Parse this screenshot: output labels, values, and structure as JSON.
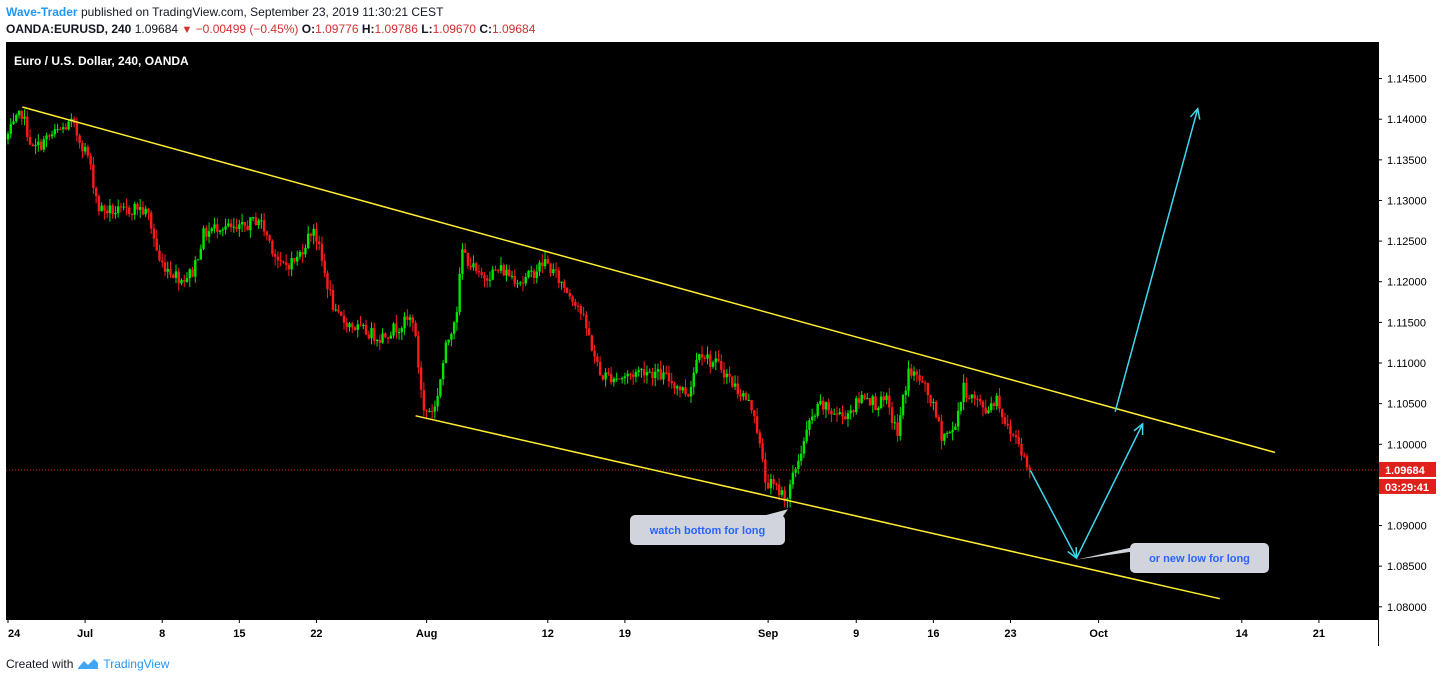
{
  "header": {
    "author": "Wave-Trader",
    "published": "published on TradingView.com, September 23, 2019 11:30:21 CEST",
    "symbol": "OANDA:EURUSD, 240",
    "last": "1.09684",
    "change": "−0.00499 (−0.45%)",
    "open_label": "O:",
    "open": "1.09776",
    "high_label": "H:",
    "high": "1.09786",
    "low_label": "L:",
    "low": "1.09670",
    "close_label": "C:",
    "close": "1.09684"
  },
  "footer": {
    "created": "Created with",
    "brand": "TradingView"
  },
  "colors": {
    "background": "#000000",
    "up": "#00e600",
    "down": "#ff1a1a",
    "channel": "#ffee33",
    "projection": "#3fd7f0",
    "price_tag": "#e0201b",
    "axis_text": "#000000"
  },
  "chart_data": {
    "type": "candlestick",
    "title": "Euro / U.S. Dollar, 240, OANDA",
    "ylim": [
      1.0785,
      1.1495
    ],
    "y_ticks": [
      "1.08000",
      "1.08500",
      "1.09000",
      "1.09500",
      "1.10000",
      "1.10500",
      "1.11000",
      "1.11500",
      "1.12000",
      "1.12500",
      "1.13000",
      "1.13500",
      "1.14000",
      "1.14500"
    ],
    "x_ticks": [
      {
        "label": "24",
        "day": 0
      },
      {
        "label": "Jul",
        "day": 7
      },
      {
        "label": "8",
        "day": 14
      },
      {
        "label": "15",
        "day": 21
      },
      {
        "label": "22",
        "day": 28
      },
      {
        "label": "Aug",
        "day": 38
      },
      {
        "label": "12",
        "day": 49
      },
      {
        "label": "19",
        "day": 56
      },
      {
        "label": "Sep",
        "day": 69
      },
      {
        "label": "9",
        "day": 77
      },
      {
        "label": "16",
        "day": 84
      },
      {
        "label": "23",
        "day": 91
      },
      {
        "label": "Oct",
        "day": 99
      },
      {
        "label": "14",
        "day": 112
      },
      {
        "label": "21",
        "day": 119
      }
    ],
    "x_range_days": [
      0,
      124
    ],
    "price_anchors": [
      [
        0,
        1.1375
      ],
      [
        1.5,
        1.1408
      ],
      [
        2.5,
        1.1362
      ],
      [
        4,
        1.1378
      ],
      [
        6,
        1.1395
      ],
      [
        7.5,
        1.1355
      ],
      [
        8.5,
        1.129
      ],
      [
        10.5,
        1.1285
      ],
      [
        12,
        1.1292
      ],
      [
        13,
        1.1282
      ],
      [
        14,
        1.1225
      ],
      [
        16,
        1.1203
      ],
      [
        17,
        1.1212
      ],
      [
        18,
        1.1258
      ],
      [
        19.5,
        1.127
      ],
      [
        21,
        1.1262
      ],
      [
        23,
        1.1278
      ],
      [
        24,
        1.125
      ],
      [
        25,
        1.1218
      ],
      [
        26.5,
        1.1228
      ],
      [
        28,
        1.1268
      ],
      [
        29,
        1.121
      ],
      [
        30,
        1.1158
      ],
      [
        32,
        1.1142
      ],
      [
        34,
        1.1132
      ],
      [
        36,
        1.1148
      ],
      [
        37,
        1.1155
      ],
      [
        38,
        1.104
      ],
      [
        39,
        1.1045
      ],
      [
        40,
        1.1118
      ],
      [
        41,
        1.1168
      ],
      [
        41.5,
        1.1238
      ],
      [
        43,
        1.1205
      ],
      [
        45,
        1.1215
      ],
      [
        47,
        1.12
      ],
      [
        49,
        1.1225
      ],
      [
        50.5,
        1.1198
      ],
      [
        52,
        1.1172
      ],
      [
        53,
        1.1132
      ],
      [
        54,
        1.1085
      ],
      [
        56,
        1.1082
      ],
      [
        58,
        1.1092
      ],
      [
        60,
        1.1082
      ],
      [
        62,
        1.1062
      ],
      [
        63,
        1.1118
      ],
      [
        64,
        1.1102
      ],
      [
        65,
        1.1095
      ],
      [
        66,
        1.1075
      ],
      [
        67,
        1.106
      ],
      [
        68,
        1.104
      ],
      [
        69,
        1.0955
      ],
      [
        71,
        1.0935
      ],
      [
        72,
        1.0982
      ],
      [
        73,
        1.1025
      ],
      [
        74,
        1.1048
      ],
      [
        75,
        1.104
      ],
      [
        76,
        1.1035
      ],
      [
        77,
        1.1045
      ],
      [
        78,
        1.1062
      ],
      [
        79,
        1.105
      ],
      [
        80,
        1.1052
      ],
      [
        81,
        1.1012
      ],
      [
        81.5,
        1.1055
      ],
      [
        82,
        1.109
      ],
      [
        83,
        1.108
      ],
      [
        84,
        1.1055
      ],
      [
        85,
        1.1012
      ],
      [
        86,
        1.1015
      ],
      [
        87,
        1.1068
      ],
      [
        88,
        1.1055
      ],
      [
        89,
        1.1042
      ],
      [
        90,
        1.1058
      ],
      [
        91,
        1.1018
      ],
      [
        92,
        1.1005
      ],
      [
        92.8,
        1.0968
      ]
    ],
    "last_price": "1.09684",
    "countdown": "03:29:41",
    "annotations": [
      {
        "text": "watch bottom for long"
      },
      {
        "text": "or new low for long"
      }
    ],
    "channel_upper": [
      [
        1.3,
        1.1415
      ],
      [
        115,
        1.099
      ]
    ],
    "channel_lower": [
      [
        37,
        1.1035
      ],
      [
        110,
        1.081
      ]
    ],
    "projection": [
      [
        92.8,
        1.0968
      ],
      [
        97,
        1.086
      ],
      [
        103,
        1.1025
      ]
    ],
    "projection_long": [
      [
        100.5,
        1.104
      ],
      [
        108,
        1.1413
      ]
    ]
  }
}
